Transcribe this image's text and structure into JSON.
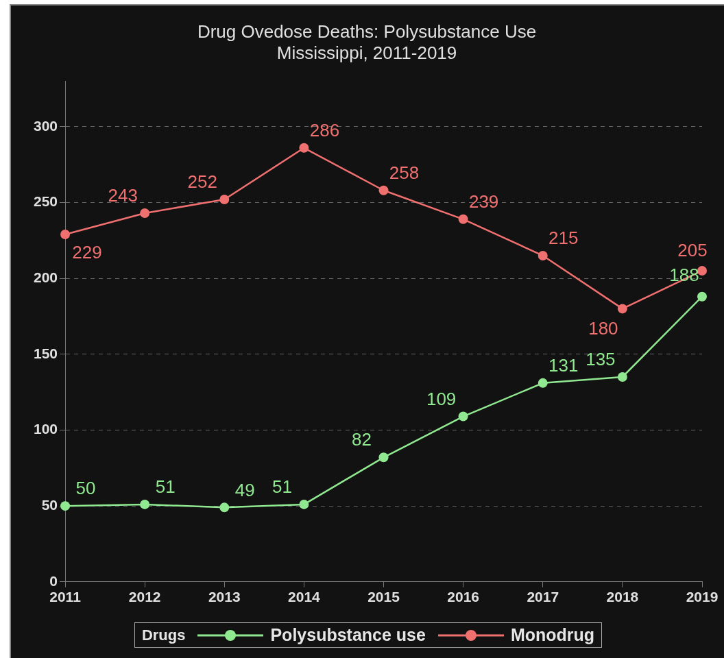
{
  "chart_data": {
    "type": "line",
    "title": "Drug Ovedose Deaths: Polysubstance Use\nMississippi, 2011-2019",
    "legend_title": "Drugs",
    "categories": [
      "2011",
      "2012",
      "2013",
      "2014",
      "2015",
      "2016",
      "2017",
      "2018",
      "2019"
    ],
    "ylim": [
      0,
      330
    ],
    "yticks": [
      0,
      50,
      100,
      150,
      200,
      250,
      300
    ],
    "series": [
      {
        "name": "Polysubstance use",
        "color": "#90e890",
        "values": [
          50,
          51,
          49,
          51,
          82,
          109,
          131,
          135,
          188
        ]
      },
      {
        "name": "Monodrug",
        "color": "#f07070",
        "values": [
          229,
          243,
          252,
          286,
          258,
          239,
          215,
          180,
          205
        ]
      }
    ],
    "grid": "y",
    "legend": "bottom",
    "marker": "circle",
    "line_style": "solid",
    "data_labels": true
  }
}
